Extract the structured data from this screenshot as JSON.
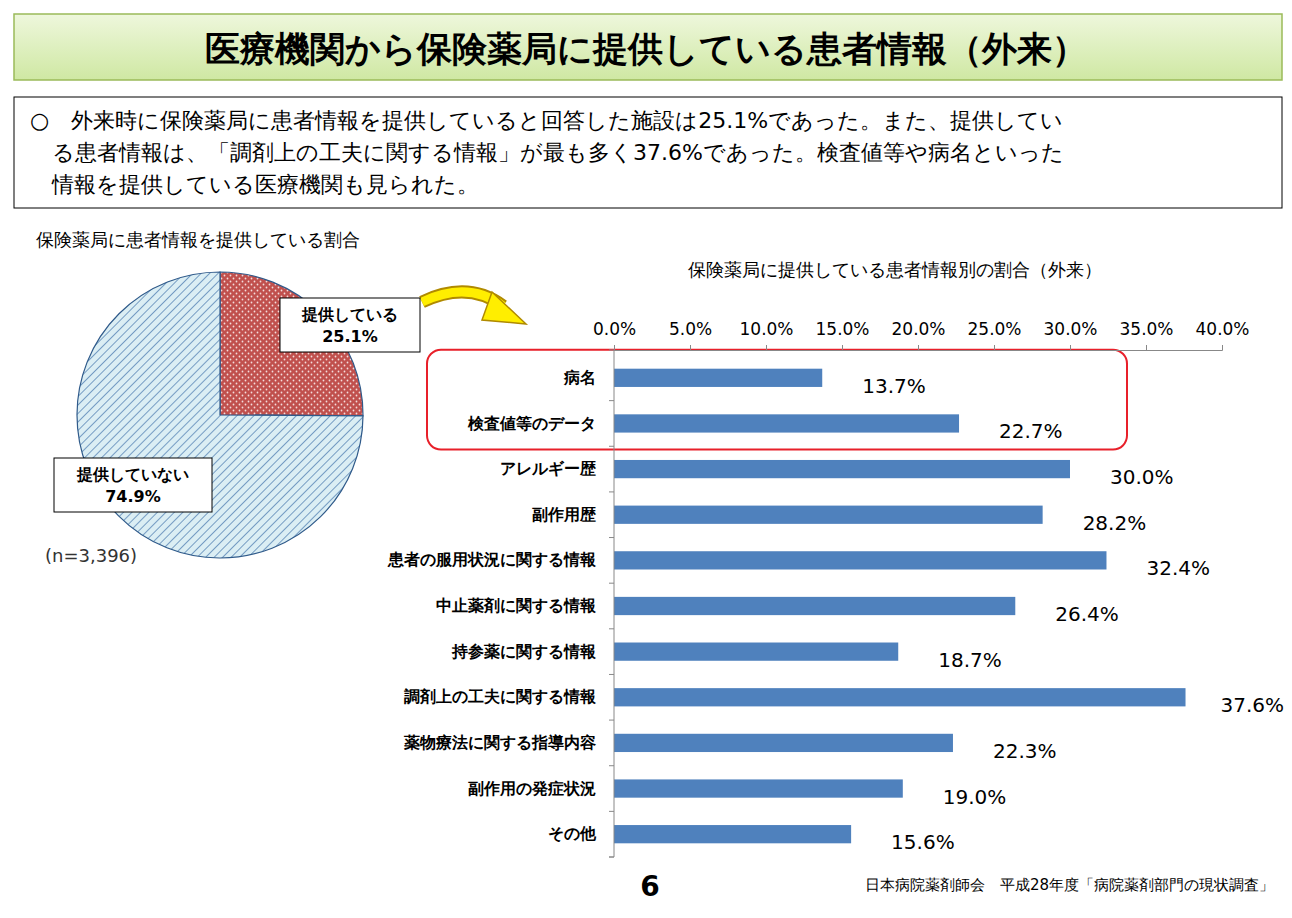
{
  "page": {
    "title": "医療機関から保険薬局に提供している患者情報（外来）",
    "summary": [
      "○　外来時に保険薬局に患者情報を提供していると回答した施設は25.1%であった。また、提供してい",
      "る患者情報は、「調剤上の工夫に関する情報」が最も多く37.6%であった。検査値等や病名といった",
      "情報を提供している医療機関も見られた。"
    ],
    "page_number": 6,
    "source": "日本病院薬剤師会　平成28年度「病院薬剤部門の現状調査」"
  },
  "chart_data": [
    {
      "type": "pie",
      "title": "保険薬局に患者情報を提供している割合",
      "categories": [
        "提供している",
        "提供していない"
      ],
      "values": [
        25.1,
        74.9
      ],
      "value_labels": [
        "25.1%",
        "74.9%"
      ],
      "colors": [
        "#c0504d",
        "#dbeef4"
      ],
      "data_labels": true,
      "annotations": [
        "(n=3,396)"
      ]
    },
    {
      "type": "bar",
      "title": "保険薬局に提供している患者情報別の割合（外来）",
      "orientation": "horizontal",
      "categories": [
        "病名",
        "検査値等のデータ",
        "アレルギー歴",
        "副作用歴",
        "患者の服用状況に関する情報",
        "中止薬剤に関する情報",
        "持参薬に関する情報",
        "調剤上の工夫に関する情報",
        "薬物療法に関する指導内容",
        "副作用の発症状況",
        "その他"
      ],
      "values": [
        13.7,
        22.7,
        30.0,
        28.2,
        32.4,
        26.4,
        18.7,
        37.6,
        22.3,
        19.0,
        15.6
      ],
      "value_labels": [
        "13.7%",
        "22.7%",
        "30.0%",
        "28.2%",
        "32.4%",
        "26.4%",
        "18.7%",
        "37.6%",
        "22.3%",
        "19.0%",
        "15.6%"
      ],
      "color": "#4f81bd",
      "xlim": [
        0,
        40
      ],
      "xticks": [
        {
          "value": 0,
          "label": "0.0%"
        },
        {
          "value": 5,
          "label": "5.0%"
        },
        {
          "value": 10,
          "label": "10.0%"
        },
        {
          "value": 15,
          "label": "15.0%"
        },
        {
          "value": 20,
          "label": "20.0%"
        },
        {
          "value": 25,
          "label": "25.0%"
        },
        {
          "value": 30,
          "label": "30.0%"
        },
        {
          "value": 35,
          "label": "35.0%"
        },
        {
          "value": 40,
          "label": "40.0%"
        }
      ],
      "grid": false,
      "data_labels": true
    }
  ]
}
